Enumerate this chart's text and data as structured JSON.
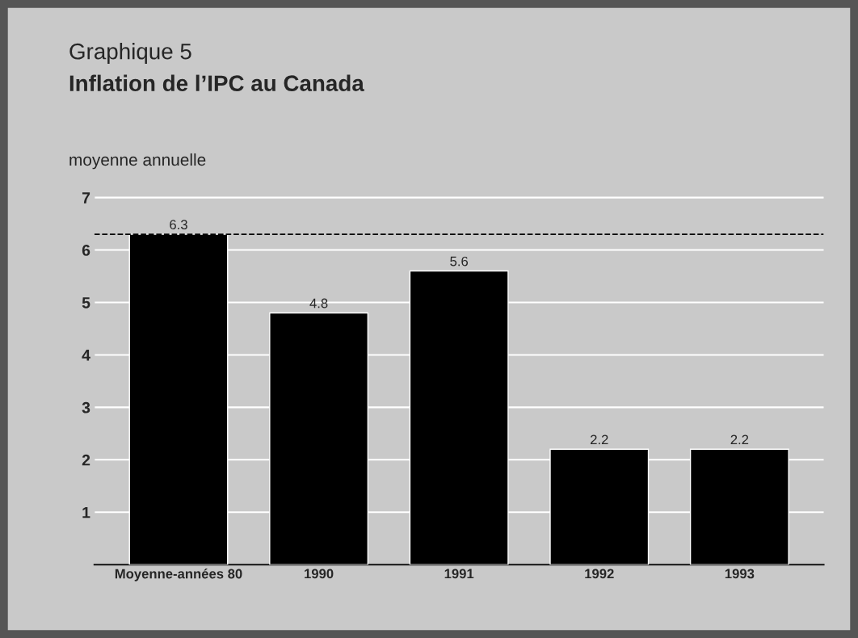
{
  "chart_data": {
    "type": "bar",
    "title": "Graphique 5",
    "subtitle": "Inflation de l’IPC au Canada",
    "ylabel": "moyenne annuelle",
    "categories": [
      "Moyenne-années 80",
      "1990",
      "1991",
      "1992",
      "1993"
    ],
    "values": [
      6.3,
      4.8,
      5.6,
      2.2,
      2.2
    ],
    "color": "#000000",
    "ylim": [
      0,
      7.3
    ],
    "yticks": [
      1,
      2,
      3,
      4,
      5,
      6,
      7
    ],
    "grid": "y",
    "data_labels": true,
    "ref_lines": [
      {
        "axis": "y",
        "value": 6.3,
        "color": "#000000",
        "line_style": "dashed"
      }
    ]
  }
}
